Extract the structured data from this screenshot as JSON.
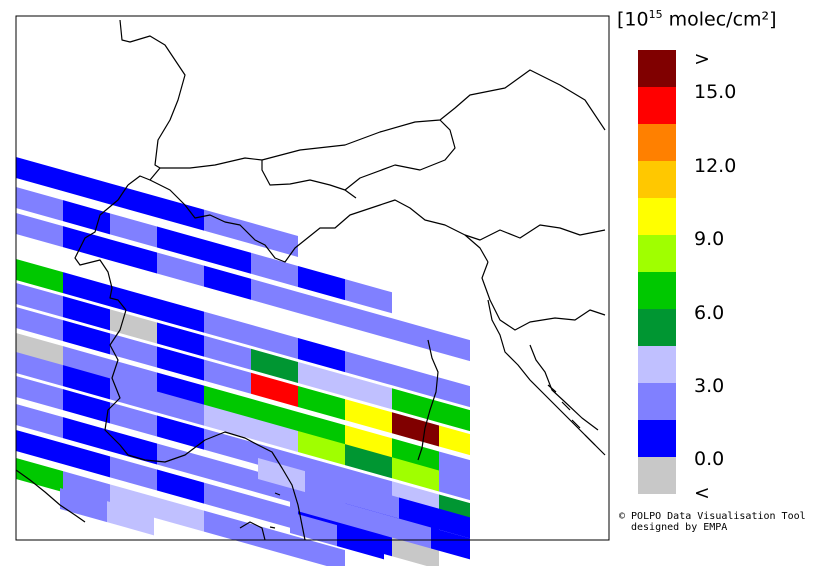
{
  "legend": {
    "unit_prefix": "[10",
    "unit_exponent": "15",
    "unit_suffix": " molec/cm²]",
    "colors": [
      "#800000",
      "#ff0000",
      "#ff8000",
      "#ffc800",
      "#ffff00",
      "#a0ff00",
      "#00c800",
      "#009632",
      "#c0c0ff",
      "#8080ff",
      "#0000ff",
      "#c8c8c8"
    ],
    "bin_labels": [
      ">",
      "15.0",
      "12.0",
      "9.0",
      "6.0",
      "3.0",
      "0.0",
      "<"
    ]
  },
  "credit": {
    "line1": "© POLPO Data Visualisation Tool",
    "line2": "designed by EMPA"
  },
  "icons": [
    "copyright-symbol"
  ],
  "map": {
    "frame_color": "#000000",
    "background_color": "#ffffff"
  }
}
